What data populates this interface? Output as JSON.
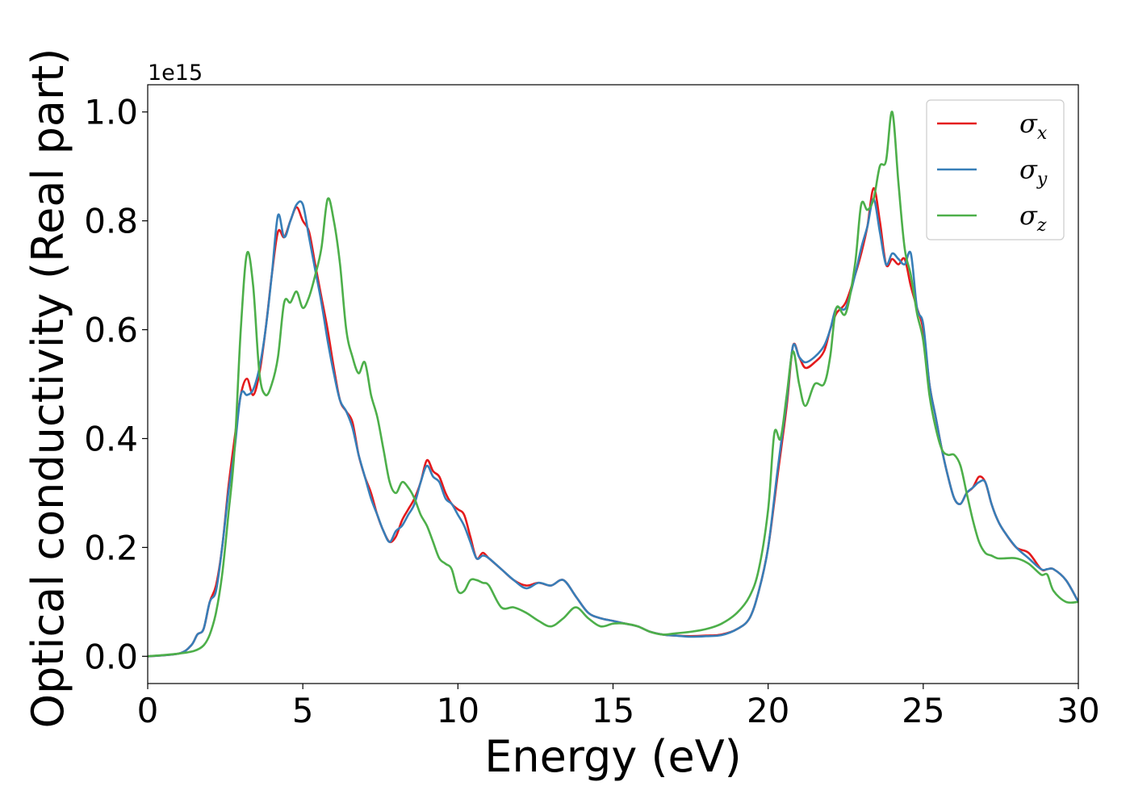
{
  "chart_data": {
    "type": "line",
    "title": "",
    "xlabel": "Energy (eV)",
    "ylabel": "Optical conductivity (Real part)",
    "y_offset_label": "1e15",
    "xlim": [
      0,
      30
    ],
    "ylim": [
      -0.05,
      1.05
    ],
    "xticks": [
      0,
      5,
      10,
      15,
      20,
      25,
      30
    ],
    "xtick_labels": [
      "0",
      "5",
      "10",
      "15",
      "20",
      "25",
      "30"
    ],
    "yticks": [
      0.0,
      0.2,
      0.4,
      0.6,
      0.8,
      1.0
    ],
    "ytick_labels": [
      "0.0",
      "0.2",
      "0.4",
      "0.6",
      "0.8",
      "1.0"
    ],
    "grid": false,
    "legend_position": "top-right",
    "series": [
      {
        "name": "σ",
        "subscript": "x",
        "color": "#e41a1c",
        "x": [
          0,
          1.0,
          1.4,
          1.6,
          1.8,
          2.0,
          2.2,
          2.4,
          2.6,
          2.8,
          3.0,
          3.2,
          3.4,
          3.6,
          3.8,
          4.0,
          4.2,
          4.4,
          4.6,
          4.8,
          5.0,
          5.2,
          5.4,
          5.6,
          5.8,
          6.0,
          6.2,
          6.4,
          6.6,
          6.8,
          7.0,
          7.2,
          7.4,
          7.6,
          7.8,
          8.0,
          8.2,
          8.4,
          8.6,
          8.8,
          9.0,
          9.2,
          9.4,
          9.6,
          9.8,
          10.0,
          10.2,
          10.4,
          10.6,
          10.8,
          11.0,
          11.4,
          11.8,
          12.2,
          12.6,
          13.0,
          13.4,
          13.8,
          14.2,
          14.6,
          15.0,
          15.4,
          15.8,
          16.2,
          16.6,
          17.0,
          17.5,
          18.0,
          18.5,
          19.0,
          19.4,
          19.7,
          20.0,
          20.3,
          20.6,
          20.8,
          21.0,
          21.2,
          21.5,
          21.8,
          22.0,
          22.2,
          22.5,
          22.8,
          23.0,
          23.2,
          23.4,
          23.6,
          23.8,
          24.0,
          24.2,
          24.4,
          24.6,
          24.8,
          25.0,
          25.2,
          25.4,
          25.6,
          25.8,
          26.0,
          26.2,
          26.4,
          26.6,
          26.8,
          27.0,
          27.2,
          27.4,
          27.6,
          28.0,
          28.4,
          28.8,
          29.0,
          29.2,
          29.6,
          30.0
        ],
        "values": [
          0.0,
          0.005,
          0.02,
          0.04,
          0.05,
          0.1,
          0.13,
          0.2,
          0.31,
          0.4,
          0.48,
          0.51,
          0.48,
          0.52,
          0.6,
          0.7,
          0.78,
          0.77,
          0.8,
          0.825,
          0.8,
          0.78,
          0.72,
          0.66,
          0.6,
          0.53,
          0.47,
          0.45,
          0.43,
          0.37,
          0.33,
          0.3,
          0.26,
          0.23,
          0.21,
          0.22,
          0.25,
          0.27,
          0.29,
          0.32,
          0.36,
          0.34,
          0.33,
          0.3,
          0.28,
          0.27,
          0.26,
          0.22,
          0.18,
          0.19,
          0.18,
          0.16,
          0.14,
          0.13,
          0.135,
          0.13,
          0.14,
          0.11,
          0.08,
          0.07,
          0.065,
          0.06,
          0.055,
          0.045,
          0.04,
          0.038,
          0.037,
          0.038,
          0.04,
          0.05,
          0.07,
          0.12,
          0.2,
          0.33,
          0.46,
          0.57,
          0.55,
          0.53,
          0.54,
          0.56,
          0.6,
          0.63,
          0.65,
          0.7,
          0.74,
          0.79,
          0.86,
          0.8,
          0.72,
          0.73,
          0.72,
          0.73,
          0.68,
          0.64,
          0.6,
          0.5,
          0.44,
          0.38,
          0.33,
          0.29,
          0.28,
          0.3,
          0.31,
          0.33,
          0.32,
          0.28,
          0.25,
          0.23,
          0.2,
          0.19,
          0.16,
          0.16,
          0.16,
          0.14,
          0.1
        ]
      },
      {
        "name": "σ",
        "subscript": "y",
        "color": "#377eb8",
        "x": [
          0,
          1.0,
          1.4,
          1.6,
          1.8,
          2.0,
          2.2,
          2.4,
          2.6,
          2.8,
          3.0,
          3.2,
          3.4,
          3.6,
          3.8,
          4.0,
          4.2,
          4.4,
          4.6,
          4.8,
          5.0,
          5.2,
          5.4,
          5.6,
          5.8,
          6.0,
          6.2,
          6.4,
          6.6,
          6.8,
          7.0,
          7.2,
          7.4,
          7.6,
          7.8,
          8.0,
          8.2,
          8.4,
          8.6,
          8.8,
          9.0,
          9.2,
          9.4,
          9.6,
          9.8,
          10.0,
          10.2,
          10.4,
          10.6,
          10.8,
          11.0,
          11.4,
          11.8,
          12.2,
          12.6,
          13.0,
          13.4,
          13.8,
          14.2,
          14.6,
          15.0,
          15.4,
          15.8,
          16.2,
          16.6,
          17.0,
          17.5,
          18.0,
          18.5,
          19.0,
          19.4,
          19.7,
          20.0,
          20.3,
          20.6,
          20.8,
          21.0,
          21.2,
          21.5,
          21.8,
          22.0,
          22.2,
          22.5,
          22.8,
          23.0,
          23.2,
          23.4,
          23.6,
          23.8,
          24.0,
          24.2,
          24.4,
          24.6,
          24.8,
          25.0,
          25.2,
          25.4,
          25.6,
          25.8,
          26.0,
          26.2,
          26.4,
          26.6,
          26.8,
          27.0,
          27.2,
          27.4,
          27.6,
          28.0,
          28.4,
          28.8,
          29.0,
          29.2,
          29.6,
          30.0
        ],
        "values": [
          0.0,
          0.005,
          0.02,
          0.04,
          0.05,
          0.1,
          0.12,
          0.2,
          0.3,
          0.38,
          0.48,
          0.48,
          0.49,
          0.53,
          0.6,
          0.7,
          0.81,
          0.77,
          0.8,
          0.83,
          0.83,
          0.77,
          0.71,
          0.65,
          0.58,
          0.52,
          0.47,
          0.45,
          0.42,
          0.37,
          0.33,
          0.29,
          0.26,
          0.23,
          0.21,
          0.23,
          0.24,
          0.26,
          0.28,
          0.32,
          0.35,
          0.33,
          0.32,
          0.29,
          0.28,
          0.26,
          0.24,
          0.21,
          0.18,
          0.185,
          0.18,
          0.16,
          0.14,
          0.125,
          0.135,
          0.13,
          0.14,
          0.11,
          0.08,
          0.07,
          0.065,
          0.06,
          0.055,
          0.045,
          0.04,
          0.038,
          0.036,
          0.037,
          0.039,
          0.05,
          0.07,
          0.12,
          0.2,
          0.34,
          0.47,
          0.57,
          0.55,
          0.54,
          0.55,
          0.57,
          0.6,
          0.64,
          0.64,
          0.7,
          0.75,
          0.79,
          0.84,
          0.78,
          0.72,
          0.74,
          0.73,
          0.72,
          0.74,
          0.64,
          0.61,
          0.5,
          0.44,
          0.38,
          0.33,
          0.29,
          0.28,
          0.3,
          0.31,
          0.32,
          0.32,
          0.28,
          0.25,
          0.23,
          0.2,
          0.18,
          0.16,
          0.16,
          0.16,
          0.14,
          0.1
        ]
      },
      {
        "name": "σ",
        "subscript": "z",
        "color": "#4daf4a",
        "x": [
          0,
          1.0,
          1.5,
          1.8,
          2.0,
          2.2,
          2.4,
          2.6,
          2.8,
          3.0,
          3.2,
          3.4,
          3.6,
          3.8,
          4.0,
          4.2,
          4.4,
          4.6,
          4.8,
          5.0,
          5.2,
          5.4,
          5.6,
          5.8,
          6.0,
          6.2,
          6.4,
          6.6,
          6.8,
          7.0,
          7.2,
          7.4,
          7.6,
          7.8,
          8.0,
          8.2,
          8.4,
          8.6,
          8.8,
          9.0,
          9.2,
          9.4,
          9.6,
          9.8,
          10.0,
          10.2,
          10.4,
          10.6,
          10.8,
          11.0,
          11.4,
          11.8,
          12.2,
          12.6,
          13.0,
          13.4,
          13.8,
          14.2,
          14.6,
          15.0,
          15.4,
          15.8,
          16.2,
          16.6,
          17.0,
          17.5,
          18.0,
          18.5,
          19.0,
          19.4,
          19.7,
          20.0,
          20.2,
          20.4,
          20.6,
          20.8,
          21.0,
          21.2,
          21.5,
          21.8,
          22.0,
          22.2,
          22.5,
          22.8,
          23.0,
          23.2,
          23.4,
          23.6,
          23.8,
          24.0,
          24.2,
          24.4,
          24.6,
          24.8,
          25.0,
          25.2,
          25.4,
          25.6,
          25.8,
          26.0,
          26.2,
          26.4,
          26.6,
          26.8,
          27.0,
          27.2,
          27.4,
          27.6,
          28.0,
          28.4,
          28.8,
          29.0,
          29.2,
          29.6,
          30.0
        ],
        "values": [
          0.0,
          0.005,
          0.01,
          0.02,
          0.04,
          0.08,
          0.15,
          0.26,
          0.38,
          0.6,
          0.74,
          0.68,
          0.52,
          0.48,
          0.5,
          0.55,
          0.65,
          0.65,
          0.67,
          0.64,
          0.66,
          0.7,
          0.75,
          0.84,
          0.8,
          0.72,
          0.6,
          0.55,
          0.52,
          0.54,
          0.48,
          0.44,
          0.38,
          0.32,
          0.3,
          0.32,
          0.31,
          0.29,
          0.26,
          0.24,
          0.21,
          0.18,
          0.17,
          0.16,
          0.12,
          0.12,
          0.14,
          0.14,
          0.135,
          0.13,
          0.09,
          0.09,
          0.08,
          0.065,
          0.055,
          0.07,
          0.09,
          0.07,
          0.055,
          0.06,
          0.06,
          0.055,
          0.045,
          0.04,
          0.042,
          0.045,
          0.05,
          0.06,
          0.08,
          0.11,
          0.16,
          0.27,
          0.41,
          0.4,
          0.48,
          0.56,
          0.5,
          0.46,
          0.5,
          0.5,
          0.55,
          0.64,
          0.63,
          0.72,
          0.83,
          0.82,
          0.84,
          0.9,
          0.91,
          1.0,
          0.87,
          0.75,
          0.7,
          0.63,
          0.58,
          0.48,
          0.42,
          0.38,
          0.37,
          0.37,
          0.35,
          0.3,
          0.25,
          0.21,
          0.19,
          0.185,
          0.18,
          0.18,
          0.18,
          0.17,
          0.15,
          0.15,
          0.12,
          0.1,
          0.1
        ]
      }
    ]
  }
}
